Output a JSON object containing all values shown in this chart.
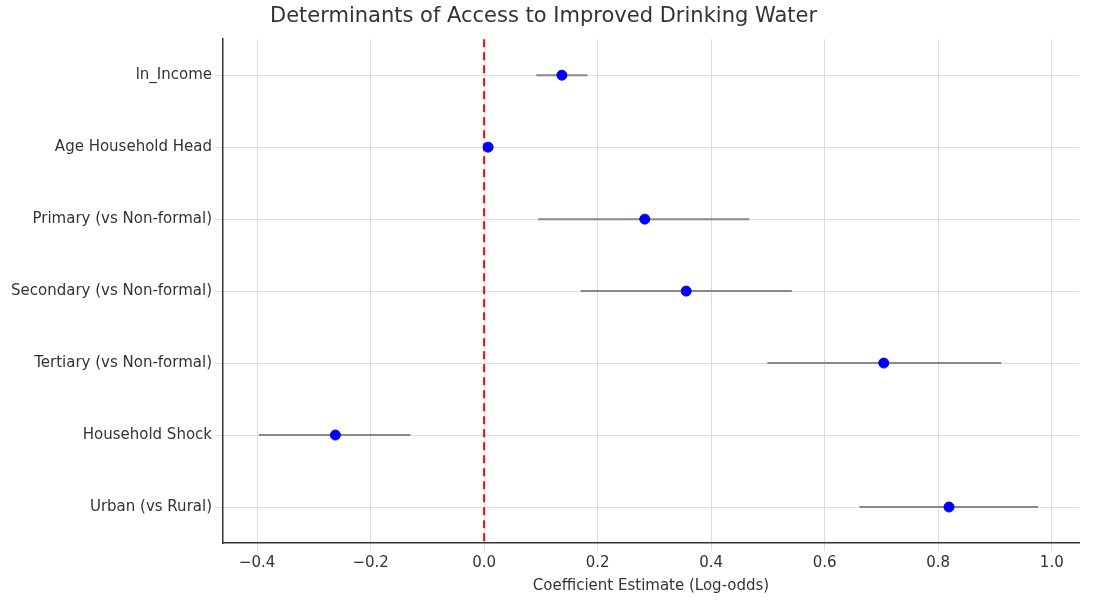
{
  "chart_data": {
    "type": "scatter",
    "title": "Determinants of Access to Improved Drinking Water",
    "xlabel": "Coefficient Estimate (Log-odds)",
    "categories": [
      "ln_Income",
      "Age Household Head",
      "Primary (vs Non-formal)",
      "Secondary (vs Non-formal)",
      "Tertiary (vs Non-formal)",
      "Household Shock",
      "Urban (vs Rural)"
    ],
    "orientation": "horizontal",
    "series": [
      {
        "color": "#0000ff",
        "values": [
          0.137,
          0.007,
          0.283,
          0.356,
          0.704,
          -0.262,
          0.819
        ],
        "errors": [
          [
            0.092,
            0.182
          ],
          null,
          [
            0.095,
            0.467
          ],
          [
            0.17,
            0.542
          ],
          [
            0.499,
            0.911
          ],
          [
            -0.397,
            -0.13
          ],
          [
            0.661,
            0.976
          ]
        ]
      }
    ],
    "xlim": [
      -0.46,
      1.048
    ],
    "xticks": [
      {
        "value": -0.4,
        "label": "−0.4"
      },
      {
        "value": -0.2,
        "label": "−0.2"
      },
      {
        "value": 0,
        "label": "0.0"
      },
      {
        "value": 0.2,
        "label": "0.2"
      },
      {
        "value": 0.4,
        "label": "0.4"
      },
      {
        "value": 0.6,
        "label": "0.6"
      },
      {
        "value": 0.8,
        "label": "0.8"
      },
      {
        "value": 1,
        "label": "1.0"
      }
    ],
    "ref_lines": [
      {
        "axis": "x",
        "value": 0,
        "color": "#ff0000",
        "line_style": "dashed"
      }
    ],
    "grid": true,
    "marker": "circle",
    "legend": false
  }
}
